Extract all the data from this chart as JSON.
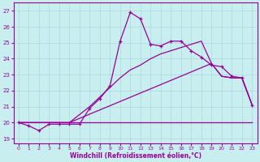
{
  "xlabel": "Windchill (Refroidissement éolien,°C)",
  "bg_color": "#c8eef0",
  "grid_color": "#aad8dc",
  "line_color": "#990099",
  "ylim": [
    18.7,
    27.5
  ],
  "xlim": [
    -0.5,
    23.5
  ],
  "yticks": [
    19,
    20,
    21,
    22,
    23,
    24,
    25,
    26,
    27
  ],
  "xticks": [
    0,
    1,
    2,
    3,
    4,
    5,
    6,
    7,
    8,
    9,
    10,
    11,
    12,
    13,
    14,
    15,
    16,
    17,
    18,
    19,
    20,
    21,
    22,
    23
  ],
  "line1_x": [
    0,
    1,
    2,
    3,
    4,
    5,
    6,
    7,
    8,
    9,
    10,
    11,
    12,
    13,
    14,
    15,
    16,
    17,
    18,
    19,
    20,
    21,
    22,
    23
  ],
  "line1_y": [
    20.0,
    19.8,
    19.5,
    19.9,
    19.9,
    19.9,
    19.9,
    20.9,
    21.5,
    22.3,
    25.1,
    26.9,
    26.5,
    24.9,
    24.8,
    25.1,
    25.1,
    24.5,
    24.1,
    23.6,
    23.5,
    22.9,
    22.8,
    21.1
  ],
  "line2_x": [
    0,
    5,
    23
  ],
  "line2_y": [
    20.0,
    20.0,
    20.0
  ],
  "line3_x": [
    0,
    5,
    19,
    20,
    21,
    22,
    23
  ],
  "line3_y": [
    20.0,
    20.0,
    23.7,
    22.9,
    22.8,
    22.8,
    21.1
  ],
  "line4_x": [
    0,
    5,
    6,
    7,
    8,
    9,
    10,
    11,
    12,
    13,
    14,
    15,
    16,
    17,
    18,
    19,
    20,
    21,
    22,
    23
  ],
  "line4_y": [
    20.0,
    20.0,
    20.5,
    21.0,
    21.6,
    22.2,
    22.8,
    23.3,
    23.6,
    24.0,
    24.3,
    24.5,
    24.7,
    24.9,
    25.1,
    23.7,
    22.9,
    22.8,
    22.8,
    21.1
  ]
}
